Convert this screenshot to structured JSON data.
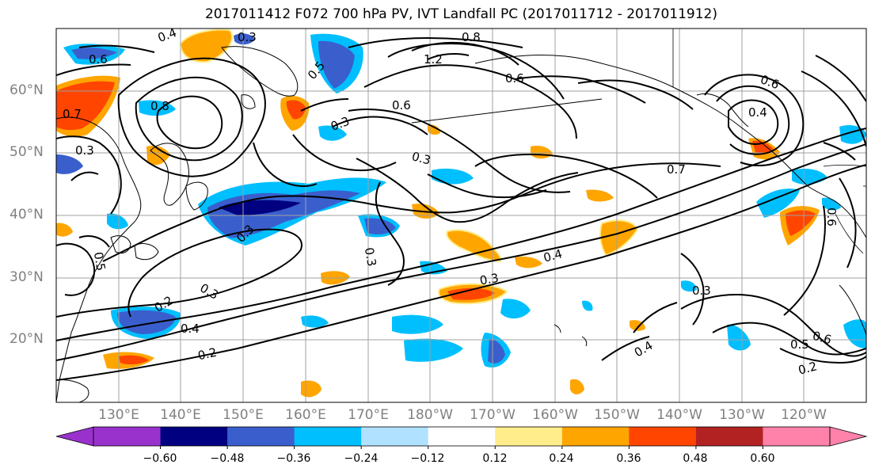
{
  "title": "2017011412 F072 700 hPa PV, IVT Landfall PC (2017011712 - 2017011912)",
  "map": {
    "lat_labels": [
      "60°N",
      "50°N",
      "40°N",
      "30°N",
      "20°N"
    ],
    "lon_labels": [
      "130°E",
      "140°E",
      "150°E",
      "160°E",
      "170°E",
      "180°W",
      "170°W",
      "160°W",
      "150°W",
      "140°W",
      "130°W",
      "120°W"
    ],
    "lat_values": [
      60,
      50,
      40,
      30,
      20
    ],
    "lon_values": [
      130,
      140,
      150,
      160,
      170,
      180,
      190,
      200,
      210,
      220,
      230,
      240
    ],
    "lon_range": [
      120,
      250
    ],
    "lat_range": [
      10,
      70
    ],
    "contour_labels": [
      "0.3",
      "0.4",
      "0.8",
      "1.2",
      "0.6",
      "0.6",
      "0.8",
      "0.6",
      "0.7",
      "0.5",
      "0.3",
      "0.3",
      "0.7",
      "0.4",
      "0.6",
      "0.4",
      "0.3",
      "0.3",
      "0.2",
      "0.3",
      "0.3",
      "0.4",
      "0.2",
      "0.4",
      "0.3",
      "0.5",
      "0.6",
      "0.2",
      "0.6",
      "0.5",
      "0.3"
    ]
  },
  "colorbar": {
    "colors": [
      "#9932cc",
      "#000080",
      "#3a5fcd",
      "#00bfff",
      "#b0e2ff",
      "#ffffff",
      "#ffec8b",
      "#ffa500",
      "#ff4500",
      "#b22222",
      "#ff82ab"
    ],
    "tick_labels": [
      "−0.60",
      "−0.48",
      "−0.36",
      "−0.24",
      "−0.12",
      "0.12",
      "0.24",
      "0.36",
      "0.48",
      "0.60"
    ]
  }
}
